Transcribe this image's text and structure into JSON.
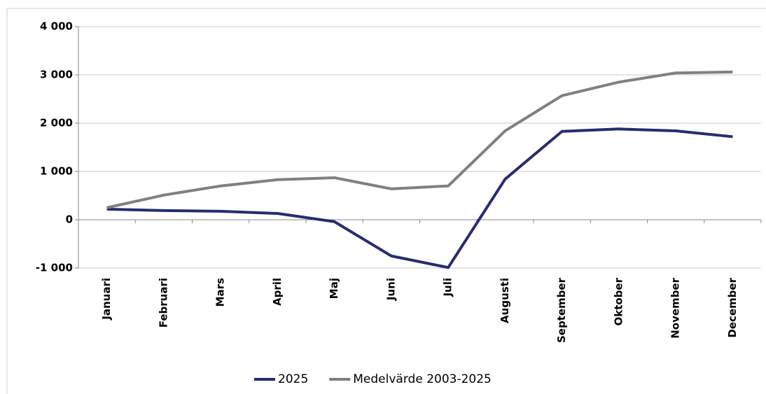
{
  "chart_data": {
    "type": "line",
    "categories": [
      "Januari",
      "Februari",
      "Mars",
      "April",
      "Maj",
      "Juni",
      "Juli",
      "Augusti",
      "September",
      "Oktober",
      "November",
      "December"
    ],
    "series": [
      {
        "name": "2025",
        "color": "#262d6e",
        "values": [
          220,
          190,
          175,
          130,
          -40,
          -750,
          -990,
          840,
          1830,
          1880,
          1840,
          1720
        ]
      },
      {
        "name": "Medelvärde 2003-2025",
        "color": "#808080",
        "values": [
          250,
          510,
          700,
          830,
          870,
          640,
          700,
          1840,
          2570,
          2850,
          3040,
          3060
        ]
      }
    ],
    "ylim": [
      -1000,
      4000
    ],
    "yticks": [
      {
        "value": -1000,
        "label": "-1 000"
      },
      0,
      {
        "value": 1000,
        "label": "1 000"
      },
      {
        "value": 2000,
        "label": "2 000"
      },
      {
        "value": 3000,
        "label": "3 000"
      },
      {
        "value": 4000,
        "label": "4 000"
      }
    ],
    "grid": true,
    "legend": "bottom"
  }
}
